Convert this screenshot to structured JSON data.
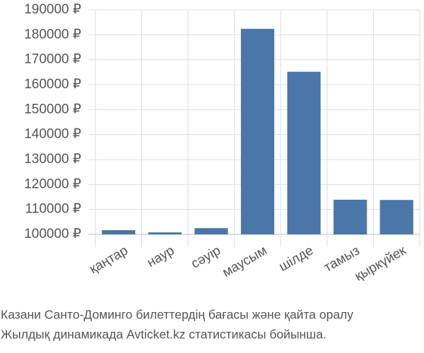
{
  "chart_data": {
    "type": "bar",
    "caption": [
      "Казани Санто-Доминго билеттердің бағасы және қайта оралу",
      "Жылдық динамикада Avticket.kz статистикасы бойынша."
    ],
    "categories": [
      "қаңтар",
      "наур",
      "сәуір",
      "маусым",
      "шілде",
      "тамыз",
      "қыркүйек"
    ],
    "values": [
      101700,
      100800,
      102500,
      182400,
      165200,
      113900,
      113800
    ],
    "color": "#4a76a8",
    "ylim": [
      100000,
      190000
    ],
    "yticks": [
      {
        "value": 100000,
        "label": "100000 ₽"
      },
      {
        "value": 110000,
        "label": "110000 ₽"
      },
      {
        "value": 120000,
        "label": "120000 ₽"
      },
      {
        "value": 130000,
        "label": "130000 ₽"
      },
      {
        "value": 140000,
        "label": "140000 ₽"
      },
      {
        "value": 150000,
        "label": "150000 ₽"
      },
      {
        "value": 160000,
        "label": "160000 ₽"
      },
      {
        "value": 170000,
        "label": "170000 ₽"
      },
      {
        "value": 180000,
        "label": "180000 ₽"
      },
      {
        "value": 190000,
        "label": "190000 ₽"
      }
    ],
    "grid": true
  }
}
